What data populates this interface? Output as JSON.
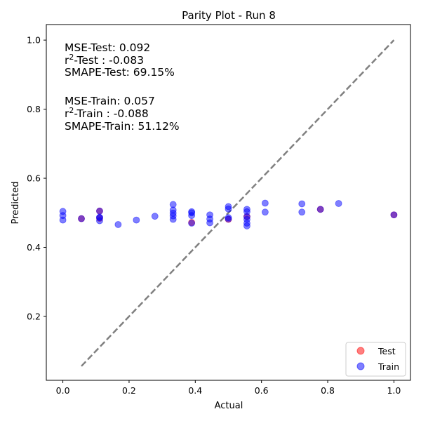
{
  "chart_data": {
    "type": "scatter",
    "title": "Parity Plot - Run 8",
    "xlabel": "Actual",
    "ylabel": "Predicted",
    "xlim": [
      -0.05,
      1.05
    ],
    "ylim": [
      0.015,
      1.045
    ],
    "xticks": [
      0.0,
      0.2,
      0.4,
      0.6,
      0.8,
      1.0
    ],
    "yticks": [
      0.2,
      0.4,
      0.6,
      0.8,
      1.0
    ],
    "xtick_labels": [
      "0.0",
      "0.2",
      "0.4",
      "0.6",
      "0.8",
      "1.0"
    ],
    "ytick_labels": [
      "0.2",
      "0.4",
      "0.6",
      "0.8",
      "1.0"
    ],
    "grid": false,
    "legend_position": "bottom-right",
    "diagonal": {
      "x": [
        0.056,
        1.0
      ],
      "y": [
        0.056,
        1.0
      ],
      "color": "#808080",
      "style": "dashed"
    },
    "annotations": {
      "test": {
        "mse": "MSE-Test: 0.092",
        "r2_prefix": "r",
        "r2_sup": "2",
        "r2_suffix": "-Test : -0.083",
        "smape": "SMAPE-Test: 69.15%"
      },
      "train": {
        "mse": "MSE-Train: 0.057",
        "r2_prefix": "r",
        "r2_sup": "2",
        "r2_suffix": "-Train : -0.088",
        "smape": "SMAPE-Train: 51.12%"
      }
    },
    "series": [
      {
        "name": "Train",
        "color": "#0000ff",
        "points": [
          [
            0.0,
            0.504
          ],
          [
            0.0,
            0.492
          ],
          [
            0.0,
            0.479
          ],
          [
            0.056,
            0.483
          ],
          [
            0.111,
            0.505
          ],
          [
            0.111,
            0.487
          ],
          [
            0.111,
            0.477
          ],
          [
            0.111,
            0.486
          ],
          [
            0.167,
            0.466
          ],
          [
            0.222,
            0.479
          ],
          [
            0.278,
            0.49
          ],
          [
            0.333,
            0.524
          ],
          [
            0.333,
            0.508
          ],
          [
            0.333,
            0.499
          ],
          [
            0.333,
            0.491
          ],
          [
            0.333,
            0.481
          ],
          [
            0.389,
            0.503
          ],
          [
            0.389,
            0.5
          ],
          [
            0.389,
            0.492
          ],
          [
            0.389,
            0.47
          ],
          [
            0.444,
            0.494
          ],
          [
            0.444,
            0.482
          ],
          [
            0.444,
            0.471
          ],
          [
            0.5,
            0.518
          ],
          [
            0.5,
            0.511
          ],
          [
            0.5,
            0.486
          ],
          [
            0.5,
            0.482
          ],
          [
            0.556,
            0.51
          ],
          [
            0.556,
            0.503
          ],
          [
            0.556,
            0.489
          ],
          [
            0.556,
            0.481
          ],
          [
            0.556,
            0.47
          ],
          [
            0.556,
            0.462
          ],
          [
            0.611,
            0.528
          ],
          [
            0.611,
            0.502
          ],
          [
            0.722,
            0.526
          ],
          [
            0.722,
            0.502
          ],
          [
            0.778,
            0.51
          ],
          [
            0.833,
            0.527
          ],
          [
            1.0,
            0.494
          ]
        ]
      },
      {
        "name": "Test",
        "color": "#ff0000",
        "points": [
          [
            0.056,
            0.483
          ],
          [
            0.111,
            0.505
          ],
          [
            0.111,
            0.484
          ],
          [
            0.389,
            0.472
          ],
          [
            0.5,
            0.481
          ],
          [
            0.556,
            0.489
          ],
          [
            0.778,
            0.51
          ],
          [
            1.0,
            0.494
          ]
        ]
      }
    ]
  }
}
